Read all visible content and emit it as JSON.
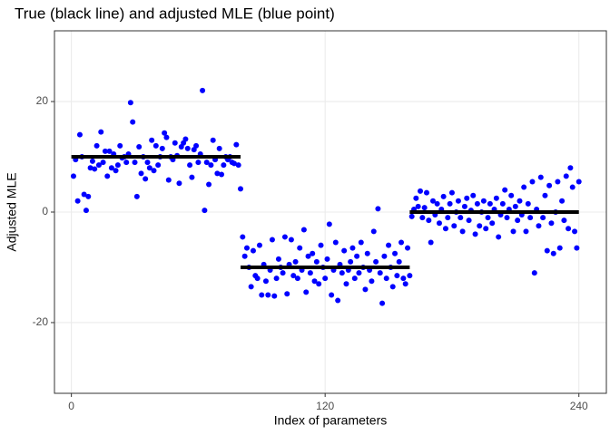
{
  "chart_data": {
    "type": "scatter",
    "title": "True (black line) and adjusted MLE (blue point)",
    "xlabel": "Index of parameters",
    "ylabel": "Adjusted MLE",
    "xlim": [
      -8,
      253
    ],
    "ylim": [
      -32.8,
      32.8
    ],
    "xticks": [
      0,
      120,
      240
    ],
    "yticks": [
      -20,
      0,
      20
    ],
    "grid": true,
    "color": "#0000ff",
    "line_color": "#000000",
    "x": [
      1,
      2,
      3,
      4,
      5,
      6,
      7,
      8,
      9,
      10,
      11,
      12,
      13,
      14,
      15,
      16,
      17,
      18,
      19,
      20,
      21,
      22,
      23,
      24,
      25,
      26,
      27,
      28,
      29,
      30,
      31,
      32,
      33,
      34,
      35,
      36,
      37,
      38,
      39,
      40,
      41,
      42,
      43,
      44,
      45,
      46,
      47,
      48,
      49,
      50,
      51,
      52,
      53,
      54,
      55,
      56,
      57,
      58,
      59,
      60,
      61,
      62,
      63,
      64,
      65,
      66,
      67,
      68,
      69,
      70,
      71,
      72,
      73,
      74,
      75,
      76,
      77,
      78,
      79,
      80,
      81,
      82,
      83,
      84,
      85,
      86,
      87,
      88,
      89,
      90,
      91,
      92,
      93,
      94,
      95,
      96,
      97,
      98,
      99,
      100,
      101,
      102,
      103,
      104,
      105,
      106,
      107,
      108,
      109,
      110,
      111,
      112,
      113,
      114,
      115,
      116,
      117,
      118,
      119,
      120,
      121,
      122,
      123,
      124,
      125,
      126,
      127,
      128,
      129,
      130,
      131,
      132,
      133,
      134,
      135,
      136,
      137,
      138,
      139,
      140,
      141,
      142,
      143,
      144,
      145,
      146,
      147,
      148,
      149,
      150,
      151,
      152,
      153,
      154,
      155,
      156,
      157,
      158,
      159,
      160,
      161,
      162,
      163,
      164,
      165,
      166,
      167,
      168,
      169,
      170,
      171,
      172,
      173,
      174,
      175,
      176,
      177,
      178,
      179,
      180,
      181,
      182,
      183,
      184,
      185,
      186,
      187,
      188,
      189,
      190,
      191,
      192,
      193,
      194,
      195,
      196,
      197,
      198,
      199,
      200,
      201,
      202,
      203,
      204,
      205,
      206,
      207,
      208,
      209,
      210,
      211,
      212,
      213,
      214,
      215,
      216,
      217,
      218,
      219,
      220,
      221,
      222,
      223,
      224,
      225,
      226,
      227,
      228,
      229,
      230,
      231,
      232,
      233,
      234,
      235,
      236,
      237,
      238,
      239,
      240
    ],
    "values": [
      6.5,
      9.5,
      2,
      14,
      10,
      3.2,
      0.3,
      2.8,
      8,
      9.2,
      7.8,
      12,
      8.5,
      14.5,
      9,
      11,
      6.5,
      11,
      8,
      10.5,
      7.5,
      8.5,
      12,
      9.8,
      10,
      9,
      10.5,
      19.8,
      16.3,
      9,
      2.8,
      11.8,
      7,
      10,
      6,
      9,
      8,
      13,
      7.5,
      12,
      8.5,
      10,
      11.5,
      14.3,
      13.5,
      5.8,
      10,
      9.5,
      12.5,
      10.2,
      5.2,
      11.8,
      12.5,
      13.2,
      11.5,
      8.5,
      6.3,
      11.3,
      12,
      9,
      10.5,
      22,
      0.3,
      9,
      5,
      8.5,
      13,
      9.5,
      7,
      11.5,
      6.8,
      8.5,
      10,
      9.5,
      10,
      9,
      8.8,
      12.2,
      8.5,
      4.2,
      -4.5,
      -8,
      -6.5,
      -10,
      -13.5,
      -7,
      -11.5,
      -12,
      -6,
      -15,
      -9.5,
      -12.5,
      -15,
      -10.5,
      -5,
      -15.2,
      -12,
      -8.5,
      -10,
      -11,
      -4.5,
      -14.8,
      -9.5,
      -5,
      -11.5,
      -9,
      -12,
      -6.5,
      -10.5,
      -3.2,
      -14.5,
      -8,
      -11,
      -7.5,
      -12.5,
      -9,
      -13,
      -6,
      -10,
      -12,
      -8.5,
      -2.2,
      -15,
      -10.5,
      -5.5,
      -16,
      -9.5,
      -11,
      -7,
      -13,
      -10.5,
      -9,
      -6.5,
      -12,
      -8,
      -11,
      -5.5,
      -10,
      -14,
      -7.5,
      -10.5,
      -12.5,
      -3.5,
      -9,
      0.6,
      -11,
      -16.5,
      -8,
      -12,
      -6,
      -10,
      -13.5,
      -7.5,
      -11.5,
      -9,
      -5.5,
      -12,
      -13,
      -6.5,
      -11.5,
      -0.8,
      0.5,
      2.5,
      1,
      3.8,
      -1,
      0.8,
      3.5,
      -1.5,
      -5.5,
      2,
      -0.5,
      1.5,
      -2,
      0.5,
      2.8,
      -3,
      -1,
      1.5,
      3.5,
      -2.5,
      0,
      2,
      -1,
      -3.5,
      1,
      2.5,
      -1.5,
      0.3,
      3,
      -4,
      1.5,
      -2.5,
      0,
      2,
      -3,
      -1,
      1.5,
      -2,
      0.5,
      2.5,
      -4.5,
      -0.5,
      1.5,
      4,
      -1,
      0.5,
      3,
      -3.5,
      1,
      -1.5,
      2,
      -0.5,
      4.5,
      -3.5,
      1.5,
      -1,
      5.5,
      -11,
      0.5,
      -2.5,
      6.3,
      -1,
      3,
      -7,
      4.8,
      -2,
      -7.5,
      0,
      5.5,
      -6.5,
      2,
      -1.5,
      6.5,
      -3,
      8,
      4.5,
      -3.5,
      -6.5,
      5.5
    ],
    "true_segments": [
      {
        "x0": 0,
        "x1": 80,
        "value": 10
      },
      {
        "x0": 80,
        "x1": 160,
        "value": -10
      },
      {
        "x0": 160,
        "x1": 240,
        "value": 0
      }
    ]
  }
}
